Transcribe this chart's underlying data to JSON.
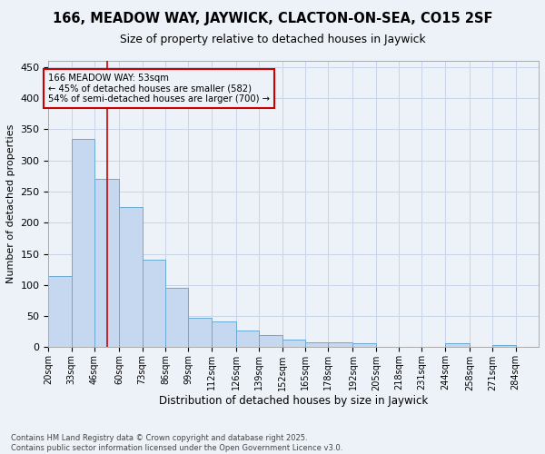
{
  "title": "166, MEADOW WAY, JAYWICK, CLACTON-ON-SEA, CO15 2SF",
  "subtitle": "Size of property relative to detached houses in Jaywick",
  "xlabel": "Distribution of detached houses by size in Jaywick",
  "ylabel": "Number of detached properties",
  "footer_line1": "Contains HM Land Registry data © Crown copyright and database right 2025.",
  "footer_line2": "Contains public sector information licensed under the Open Government Licence v3.0.",
  "bin_labels": [
    "20sqm",
    "33sqm",
    "46sqm",
    "60sqm",
    "73sqm",
    "86sqm",
    "99sqm",
    "112sqm",
    "126sqm",
    "139sqm",
    "152sqm",
    "165sqm",
    "178sqm",
    "192sqm",
    "205sqm",
    "218sqm",
    "231sqm",
    "244sqm",
    "258sqm",
    "271sqm",
    "284sqm"
  ],
  "bin_edges": [
    20,
    33,
    46,
    60,
    73,
    86,
    99,
    112,
    126,
    139,
    152,
    165,
    178,
    192,
    205,
    218,
    231,
    244,
    258,
    271,
    284
  ],
  "bar_heights": [
    115,
    335,
    270,
    225,
    140,
    95,
    48,
    42,
    27,
    20,
    13,
    8,
    8,
    7,
    0,
    0,
    0,
    7,
    0,
    4
  ],
  "bar_color": "#c5d8ef",
  "bar_edge_color": "#6aaad4",
  "grid_color": "#c8d4e8",
  "bg_color": "#edf2f9",
  "annotation_box_color": "#cc0000",
  "annotation_text_line1": "166 MEADOW WAY: 53sqm",
  "annotation_text_line2": "← 45% of detached houses are smaller (582)",
  "annotation_text_line3": "54% of semi-detached houses are larger (700) →",
  "red_line_x": 53,
  "red_line_color": "#cc0000",
  "ylim": [
    0,
    460
  ],
  "yticks": [
    0,
    50,
    100,
    150,
    200,
    250,
    300,
    350,
    400,
    450
  ]
}
